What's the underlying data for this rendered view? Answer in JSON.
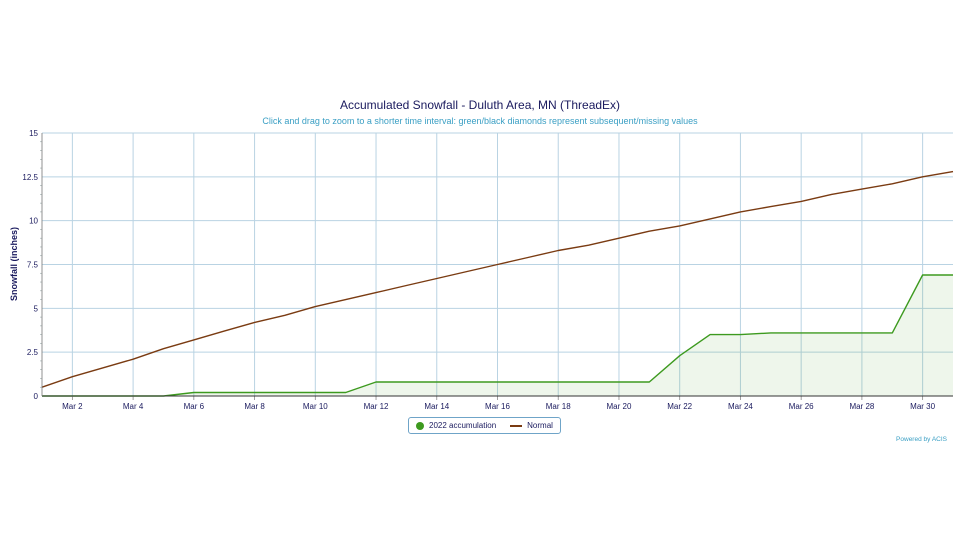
{
  "chart_data": {
    "type": "line",
    "title": "Accumulated Snowfall - Duluth Area, MN (ThreadEx)",
    "subtitle": "Click and drag to zoom to a shorter time interval: green/black diamonds represent subsequent/missing values",
    "ylabel": "Snowfall (inches)",
    "xlabel": "",
    "ylim": [
      0,
      15
    ],
    "xlim": [
      1,
      31
    ],
    "yticks": [
      0,
      2.5,
      5,
      7.5,
      10,
      12.5,
      15
    ],
    "ytick_labels": [
      "0",
      "2.5",
      "5",
      "7.5",
      "10",
      "12.5",
      "15"
    ],
    "xticks": [
      2,
      4,
      6,
      8,
      10,
      12,
      14,
      16,
      18,
      20,
      22,
      24,
      26,
      28,
      30
    ],
    "xtick_labels": [
      "Mar 2",
      "Mar 4",
      "Mar 6",
      "Mar 8",
      "Mar 10",
      "Mar 12",
      "Mar 14",
      "Mar 16",
      "Mar 18",
      "Mar 20",
      "Mar 22",
      "Mar 24",
      "Mar 26",
      "Mar 28",
      "Mar 30"
    ],
    "grid": true,
    "legend_position": "bottom-center",
    "series": [
      {
        "name": "2022 accumulation",
        "color": "#3d9a1f",
        "fill": true,
        "x": [
          1,
          2,
          3,
          4,
          5,
          6,
          7,
          8,
          9,
          10,
          11,
          12,
          13,
          14,
          15,
          16,
          17,
          18,
          19,
          20,
          21,
          22,
          23,
          24,
          25,
          26,
          27,
          28,
          29,
          30,
          31
        ],
        "values": [
          0,
          0,
          0,
          0,
          0,
          0.2,
          0.2,
          0.2,
          0.2,
          0.2,
          0.2,
          0.8,
          0.8,
          0.8,
          0.8,
          0.8,
          0.8,
          0.8,
          0.8,
          0.8,
          0.8,
          2.3,
          3.5,
          3.5,
          3.6,
          3.6,
          3.6,
          3.6,
          3.6,
          6.9,
          6.9
        ]
      },
      {
        "name": "Normal",
        "color": "#7a3b12",
        "fill": false,
        "x": [
          1,
          2,
          3,
          4,
          5,
          6,
          7,
          8,
          9,
          10,
          11,
          12,
          13,
          14,
          15,
          16,
          17,
          18,
          19,
          20,
          21,
          22,
          23,
          24,
          25,
          26,
          27,
          28,
          29,
          30,
          31
        ],
        "values": [
          0.5,
          1.1,
          1.6,
          2.1,
          2.7,
          3.2,
          3.7,
          4.2,
          4.6,
          5.1,
          5.5,
          5.9,
          6.3,
          6.7,
          7.1,
          7.5,
          7.9,
          8.3,
          8.6,
          9.0,
          9.4,
          9.7,
          10.1,
          10.5,
          10.8,
          11.1,
          11.5,
          11.8,
          12.1,
          12.5,
          12.8
        ]
      }
    ]
  },
  "credits": "Powered by ACIS"
}
